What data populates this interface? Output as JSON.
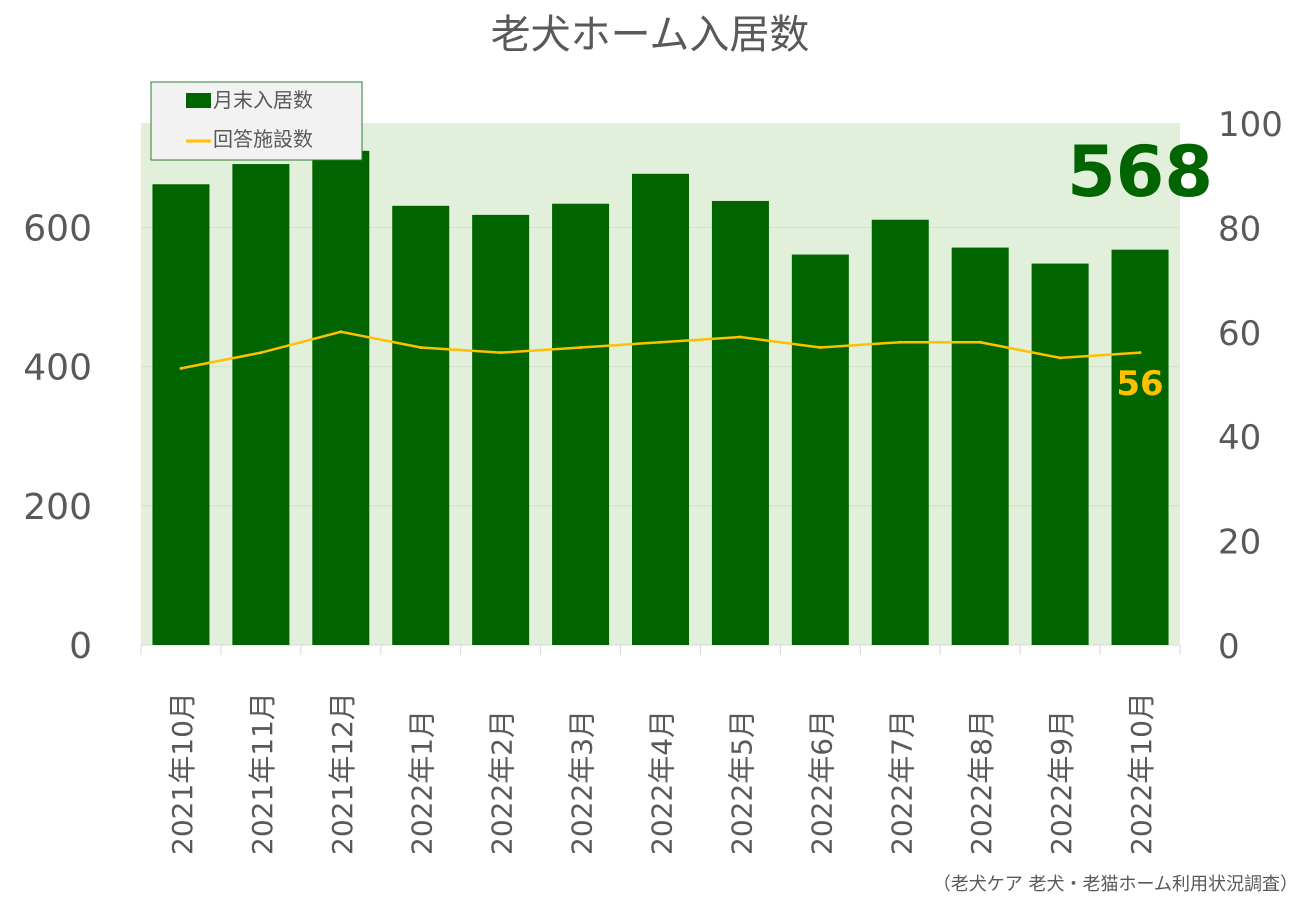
{
  "chart_data": {
    "type": "bar+line",
    "title": "老犬ホーム入居数",
    "categories": [
      "2021年10月",
      "2021年11月",
      "2021年12月",
      "2022年1月",
      "2022年2月",
      "2022年3月",
      "2022年4月",
      "2022年5月",
      "2022年6月",
      "2022年7月",
      "2022年8月",
      "2022年9月",
      "2022年10月"
    ],
    "series": [
      {
        "name": "月末入居数",
        "type": "bar",
        "axis": "left",
        "color": "#006400",
        "values": [
          662,
          691,
          710,
          631,
          618,
          634,
          677,
          638,
          561,
          611,
          571,
          548,
          568
        ]
      },
      {
        "name": "回答施設数",
        "type": "line",
        "axis": "right",
        "color": "#ffc000",
        "values": [
          53,
          56,
          60,
          57,
          56,
          57,
          58,
          59,
          57,
          58,
          58,
          55,
          56
        ]
      }
    ],
    "left_axis": {
      "ylim": [
        0,
        750
      ],
      "ticks": [
        0,
        200,
        400,
        600
      ]
    },
    "right_axis": {
      "ylim": [
        0,
        100
      ],
      "ticks": [
        0,
        20,
        40,
        60,
        80,
        100
      ]
    },
    "highlight_bar_label": "568",
    "highlight_line_label": "56",
    "legend_position": "top-left",
    "plot_background": "#e2efda",
    "source": "（老犬ケア 老犬・老猫ホーム利用状況調査）"
  }
}
